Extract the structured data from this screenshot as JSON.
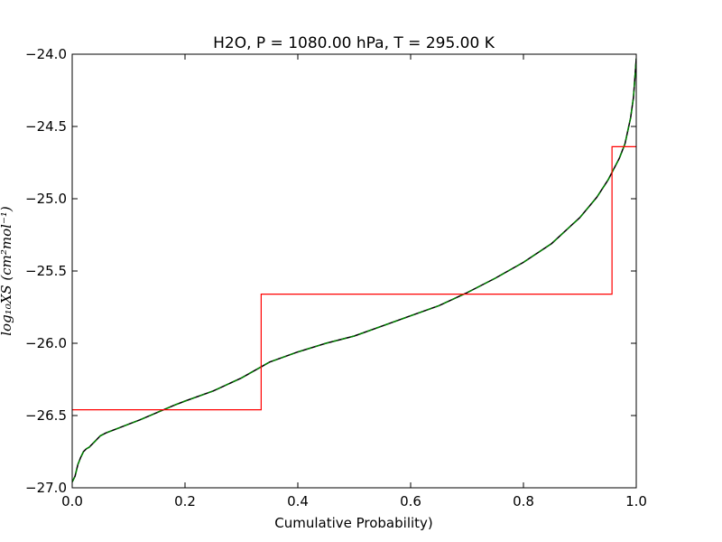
{
  "chart_data": {
    "type": "line",
    "title": "H2O, P = 1080.00 hPa, T = 295.00 K",
    "xlabel": "Cumulative Probability)",
    "ylabel": "log₁₀XS (cm²mol⁻¹)",
    "xlim": [
      0.0,
      1.0
    ],
    "ylim": [
      -27.0,
      -24.0
    ],
    "xticks": [
      0.0,
      0.2,
      0.4,
      0.6,
      0.8,
      1.0
    ],
    "xtick_labels": [
      "0.0",
      "0.2",
      "0.4",
      "0.6",
      "0.8",
      "1.0"
    ],
    "yticks": [
      -27.0,
      -26.5,
      -26.0,
      -25.5,
      -25.0,
      -24.5,
      -24.0
    ],
    "ytick_labels": [
      "−27.0",
      "−26.5",
      "−26.0",
      "−25.5",
      "−25.0",
      "−24.5",
      "−24.0"
    ],
    "grid": false,
    "legend": "none",
    "series": [
      {
        "color": "#000000",
        "style": "solid",
        "x": [
          0.0,
          0.005,
          0.01,
          0.015,
          0.02,
          0.025,
          0.03,
          0.04,
          0.05,
          0.06,
          0.08,
          0.1,
          0.12,
          0.15,
          0.18,
          0.2,
          0.25,
          0.3,
          0.35,
          0.4,
          0.45,
          0.5,
          0.55,
          0.6,
          0.65,
          0.7,
          0.75,
          0.8,
          0.85,
          0.9,
          0.93,
          0.95,
          0.97,
          0.98,
          0.99,
          0.995,
          1.0
        ],
        "y": [
          -26.96,
          -26.92,
          -26.84,
          -26.79,
          -26.75,
          -26.73,
          -26.72,
          -26.68,
          -26.64,
          -26.62,
          -26.59,
          -26.56,
          -26.53,
          -26.48,
          -26.43,
          -26.4,
          -26.33,
          -26.24,
          -26.13,
          -26.06,
          -26.0,
          -25.95,
          -25.88,
          -25.81,
          -25.74,
          -25.65,
          -25.55,
          -25.44,
          -25.31,
          -25.13,
          -24.99,
          -24.87,
          -24.72,
          -24.62,
          -24.44,
          -24.3,
          -24.03
        ]
      },
      {
        "color": "#008000",
        "style": "dashed",
        "x": [
          0.0,
          0.005,
          0.01,
          0.015,
          0.02,
          0.025,
          0.03,
          0.04,
          0.05,
          0.06,
          0.08,
          0.1,
          0.12,
          0.15,
          0.18,
          0.2,
          0.25,
          0.3,
          0.35,
          0.4,
          0.45,
          0.5,
          0.55,
          0.6,
          0.65,
          0.7,
          0.75,
          0.8,
          0.85,
          0.9,
          0.93,
          0.95,
          0.97,
          0.98,
          0.99,
          0.995,
          1.0
        ],
        "y": [
          -26.96,
          -26.92,
          -26.84,
          -26.79,
          -26.75,
          -26.73,
          -26.72,
          -26.68,
          -26.64,
          -26.62,
          -26.59,
          -26.56,
          -26.53,
          -26.48,
          -26.43,
          -26.4,
          -26.33,
          -26.24,
          -26.13,
          -26.06,
          -26.0,
          -25.95,
          -25.88,
          -25.81,
          -25.74,
          -25.65,
          -25.55,
          -25.44,
          -25.31,
          -25.13,
          -24.99,
          -24.87,
          -24.72,
          -24.62,
          -24.44,
          -24.3,
          -24.03
        ]
      },
      {
        "color": "#ff0000",
        "style": "step",
        "x": [
          0.0,
          0.335,
          0.335,
          0.957,
          0.957,
          1.0
        ],
        "y": [
          -26.46,
          -26.46,
          -25.66,
          -25.66,
          -24.64,
          -24.64
        ]
      }
    ]
  }
}
